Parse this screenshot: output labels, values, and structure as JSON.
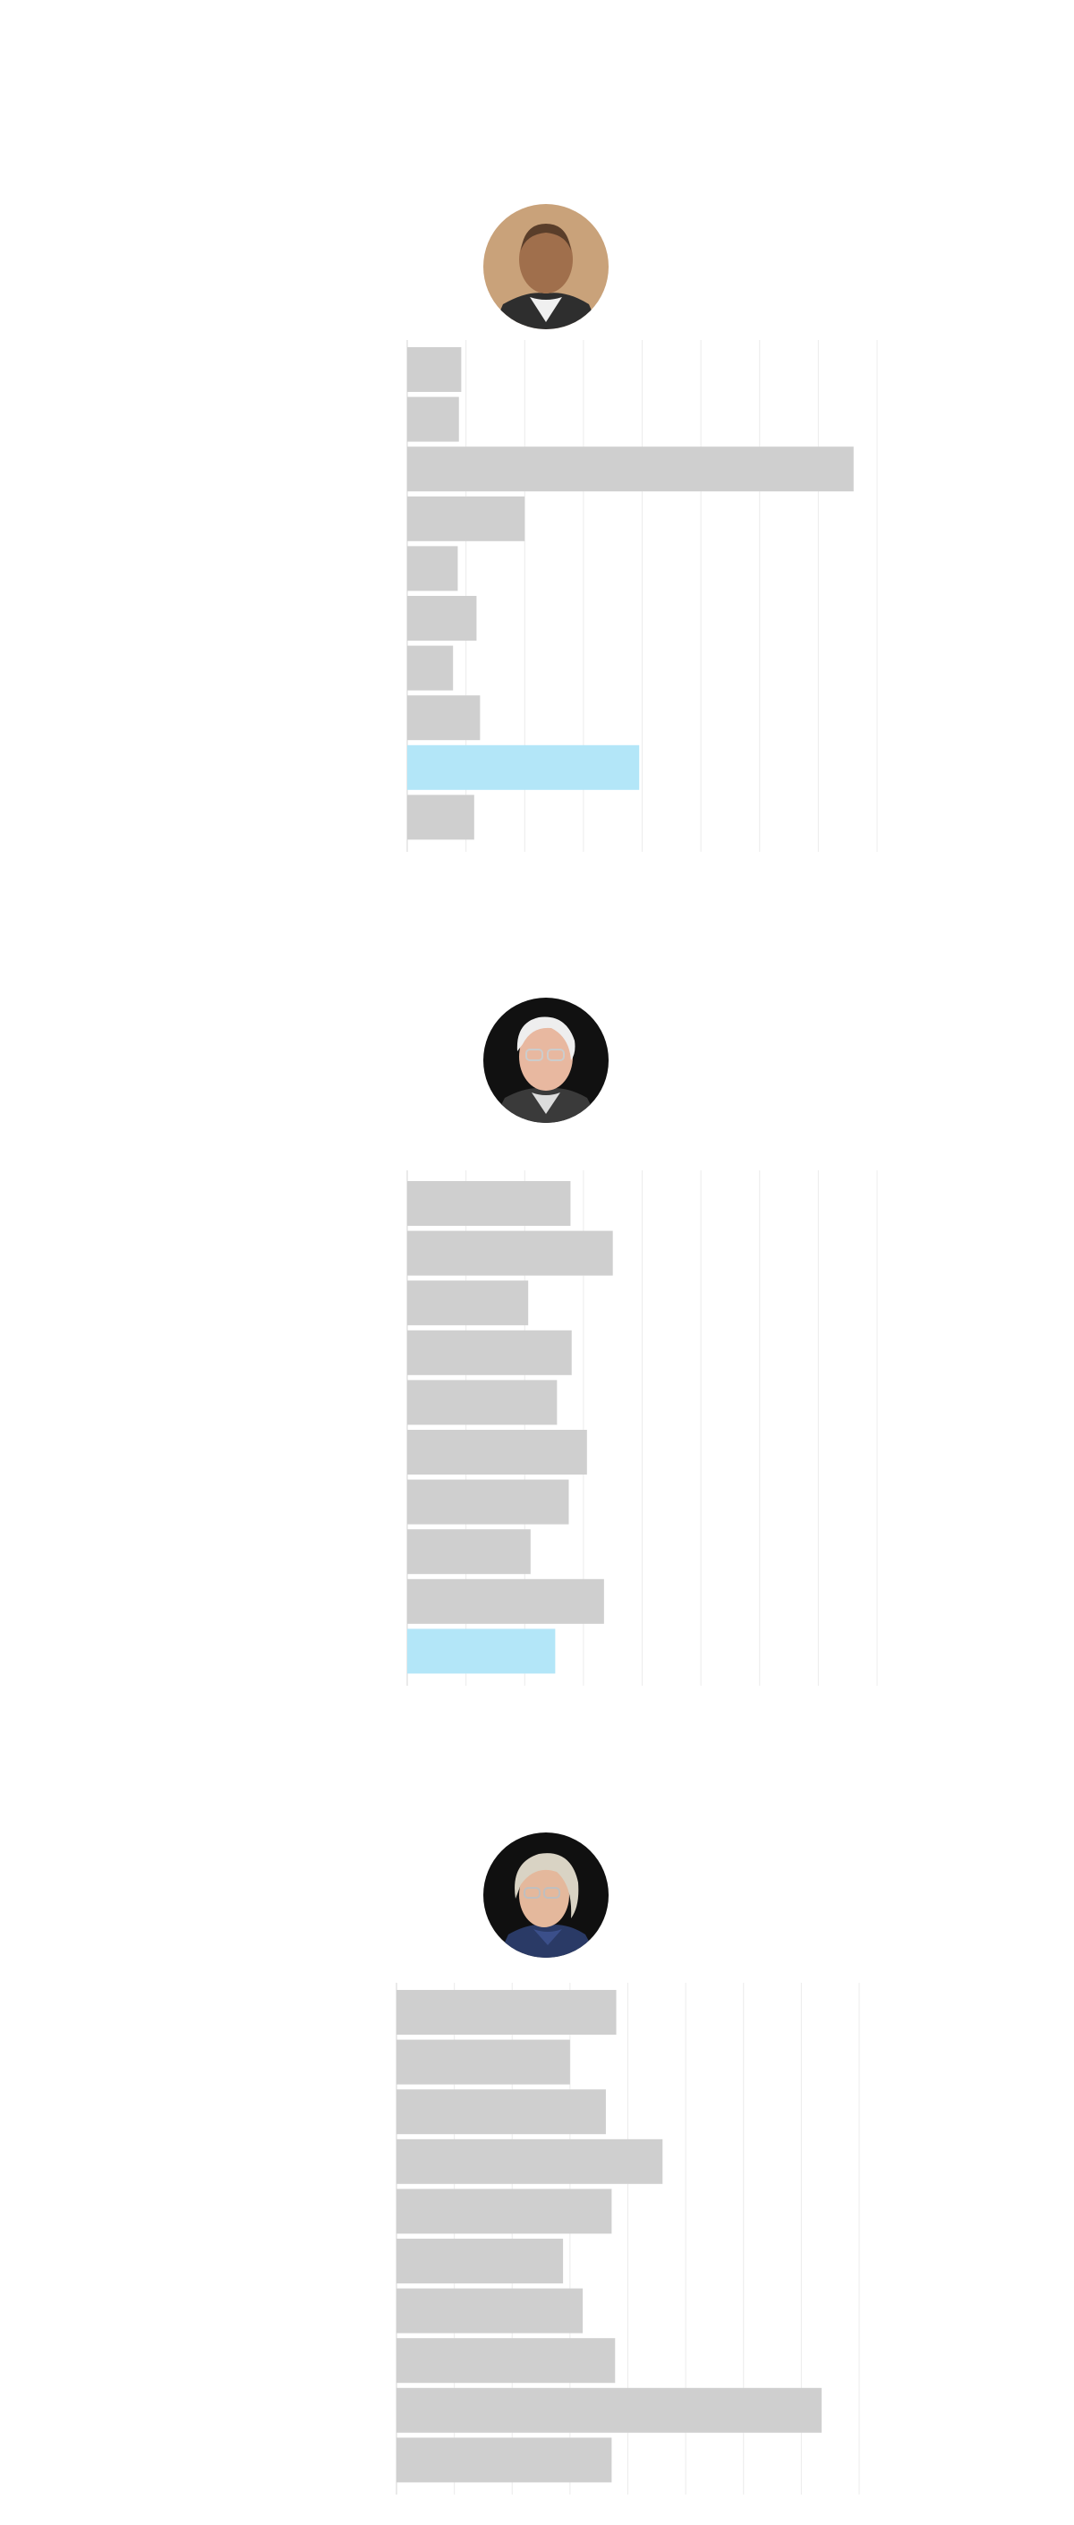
{
  "chart_data": [
    {
      "type": "bar",
      "orientation": "horizontal",
      "grid": true,
      "xlim": [
        0,
        8
      ],
      "bar_color": "#cfcfcf",
      "highlight_color": "#b3e6f8",
      "highlight_index": 8,
      "values": [
        0.92,
        0.88,
        7.6,
        2.0,
        0.86,
        1.18,
        0.78,
        1.24,
        3.95,
        1.14
      ]
    },
    {
      "type": "bar",
      "orientation": "horizontal",
      "grid": true,
      "xlim": [
        0,
        8
      ],
      "bar_color": "#cfcfcf",
      "highlight_color": "#b3e6f8",
      "highlight_index": 9,
      "values": [
        2.78,
        3.5,
        2.06,
        2.8,
        2.55,
        3.06,
        2.75,
        2.1,
        3.35,
        2.52
      ]
    },
    {
      "type": "bar",
      "orientation": "horizontal",
      "grid": true,
      "xlim": [
        0,
        8
      ],
      "bar_color": "#cfcfcf",
      "highlight_color": "#b3e6f8",
      "highlight_index": -1,
      "values": [
        3.8,
        3.0,
        3.62,
        4.6,
        3.72,
        2.88,
        3.22,
        3.78,
        7.35,
        3.72
      ]
    }
  ],
  "avatars": [
    {
      "icon": "portrait-photo-icon",
      "bg": "#c9a27a",
      "skin": "#a06f4c",
      "hair": "#5a3e2a",
      "suit": "#2e2e2e",
      "shirt": "#f0f0f0"
    },
    {
      "icon": "portrait-photo-icon",
      "bg": "#111111",
      "skin": "#e8b8a0",
      "hair": "#eeeeee",
      "suit": "#3a3a3a",
      "shirt": "#dcdcdc"
    },
    {
      "icon": "portrait-photo-icon",
      "bg": "#101010",
      "skin": "#e4b89c",
      "hair": "#d9d3c4",
      "suit": "#2a3a66",
      "shirt": "#3b4f8a"
    }
  ]
}
